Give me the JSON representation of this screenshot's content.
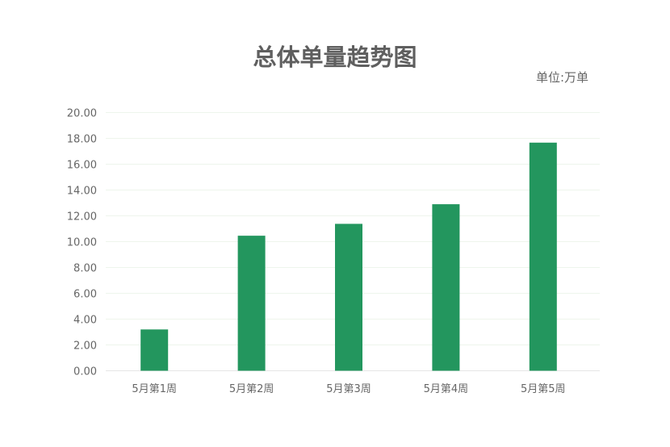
{
  "chart_data": {
    "type": "bar",
    "title": "总体单量趋势图",
    "unit_label": "单位:万单",
    "categories": [
      "5月第1周",
      "5月第2周",
      "5月第3周",
      "5月第4周",
      "5月第5周"
    ],
    "values": [
      3.2,
      10.46,
      11.38,
      12.9,
      17.67
    ],
    "ylim": [
      0,
      20
    ],
    "yticks": [
      "0.00",
      "2.00",
      "4.00",
      "6.00",
      "8.00",
      "10.00",
      "12.00",
      "14.00",
      "16.00",
      "18.00",
      "20.00"
    ],
    "grid": true,
    "colors": {
      "bar": "#23965e",
      "grid": "#eef5ec"
    }
  }
}
